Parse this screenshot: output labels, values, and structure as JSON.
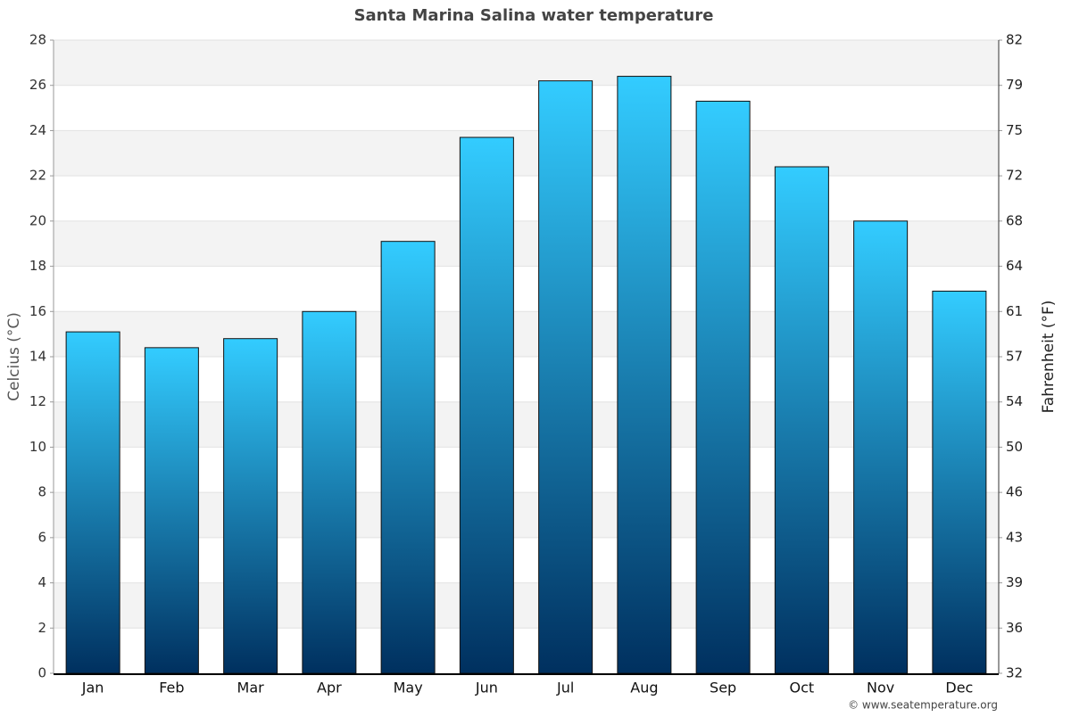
{
  "chart_data": {
    "type": "bar",
    "title": "Santa Marina Salina water temperature",
    "y_label": "Celcius (°C)",
    "y2_label": "Fahrenheit (°F)",
    "credit": "© www.seatemperature.org",
    "categories": [
      "Jan",
      "Feb",
      "Mar",
      "Apr",
      "May",
      "Jun",
      "Jul",
      "Aug",
      "Sep",
      "Oct",
      "Nov",
      "Dec"
    ],
    "values": [
      15.1,
      14.4,
      14.8,
      16.0,
      19.1,
      23.7,
      26.2,
      26.4,
      25.3,
      22.4,
      20.0,
      16.9
    ],
    "color": "#33ccff",
    "color_bottom": "#00305f",
    "ylim": [
      0,
      28
    ],
    "yticks": [
      0,
      2,
      4,
      6,
      8,
      10,
      12,
      14,
      16,
      18,
      20,
      22,
      24,
      26,
      28
    ],
    "y2lim": [
      32,
      82.4
    ],
    "y2ticks": [
      32,
      {
        "value": 35.6,
        "label": "36"
      },
      {
        "value": 39.2,
        "label": "39"
      },
      {
        "value": 42.8,
        "label": "43"
      },
      {
        "value": 46.4,
        "label": "46"
      },
      50,
      {
        "value": 53.6,
        "label": "54"
      },
      {
        "value": 57.2,
        "label": "57"
      },
      {
        "value": 60.8,
        "label": "61"
      },
      {
        "value": 64.4,
        "label": "64"
      },
      68,
      {
        "value": 71.6,
        "label": "72"
      },
      {
        "value": 75.2,
        "label": "75"
      },
      {
        "value": 78.8,
        "label": "79"
      },
      {
        "value": 82.4,
        "label": "82"
      }
    ],
    "grid": true
  }
}
